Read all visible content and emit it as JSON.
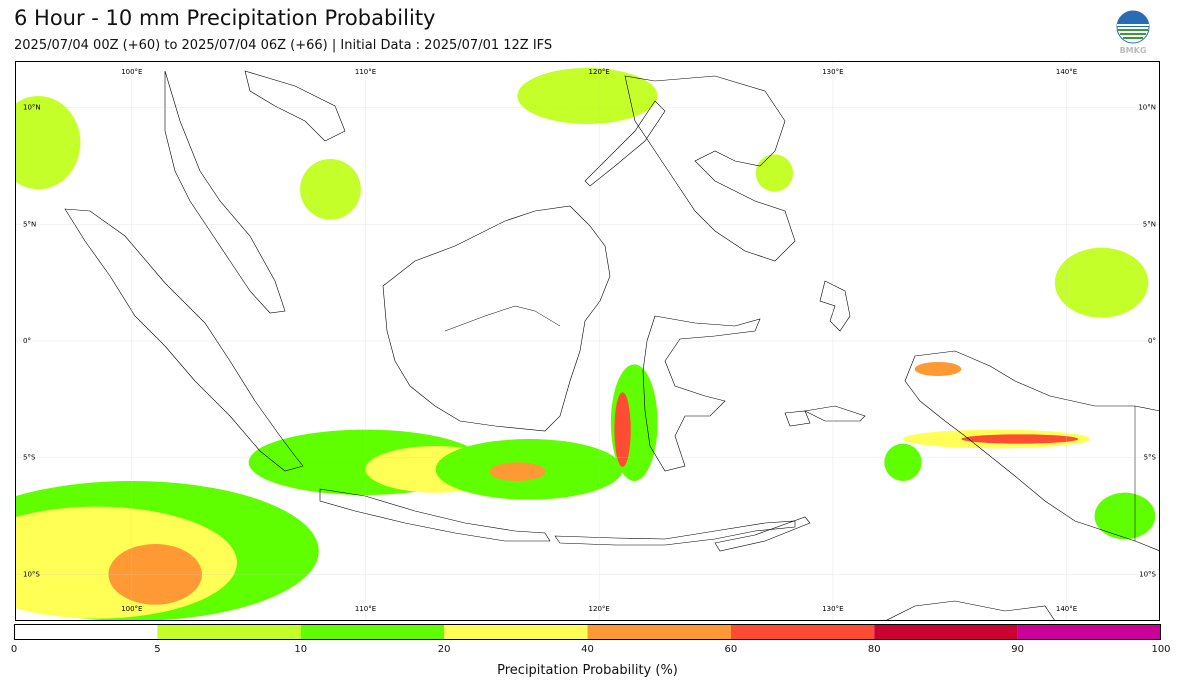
{
  "header": {
    "title": "6 Hour - 10 mm Precipitation Probability",
    "subtitle": "2025/07/04 00Z (+60) to 2025/07/04 06Z (+66) | Initial Data : 2025/07/01 12Z IFS",
    "logo_text": "BMKG"
  },
  "map": {
    "lon_range": [
      95,
      144
    ],
    "lat_range": [
      -12,
      12
    ],
    "lon_labels": [
      "100°E",
      "110°E",
      "120°E",
      "130°E",
      "140°E"
    ],
    "lat_labels": [
      "10°N",
      "5°N",
      "0°",
      "5°S",
      "10°S"
    ],
    "lon_values": [
      100,
      110,
      120,
      130,
      140
    ],
    "lat_values": [
      10,
      5,
      0,
      -5,
      -10
    ],
    "fields": [
      {
        "lon": 100,
        "lat": -9,
        "rx": 8,
        "ry": 3,
        "level": 10
      },
      {
        "lon": 98.5,
        "lat": -9.5,
        "rx": 6,
        "ry": 2.4,
        "level": 20
      },
      {
        "lon": 101,
        "lat": -10,
        "rx": 2,
        "ry": 1.3,
        "level": 40
      },
      {
        "lon": 110,
        "lat": -5.2,
        "rx": 5,
        "ry": 1.4,
        "level": 10
      },
      {
        "lon": 113,
        "lat": -5.5,
        "rx": 3,
        "ry": 1,
        "level": 20
      },
      {
        "lon": 117,
        "lat": -5.5,
        "rx": 4,
        "ry": 1.3,
        "level": 10
      },
      {
        "lon": 116.5,
        "lat": -5.6,
        "rx": 1.2,
        "ry": 0.4,
        "level": 40
      },
      {
        "lon": 121.5,
        "lat": -3.5,
        "rx": 1,
        "ry": 2.5,
        "level": 10
      },
      {
        "lon": 121,
        "lat": -3.8,
        "rx": 0.35,
        "ry": 1.6,
        "level": 60
      },
      {
        "lon": 137,
        "lat": -4.2,
        "rx": 4,
        "ry": 0.4,
        "level": 20
      },
      {
        "lon": 138,
        "lat": -4.2,
        "rx": 2.5,
        "ry": 0.2,
        "level": 60
      },
      {
        "lon": 134.5,
        "lat": -1.2,
        "rx": 1,
        "ry": 0.3,
        "level": 40
      },
      {
        "lon": 119.5,
        "lat": 10.5,
        "rx": 3,
        "ry": 1.2,
        "level": 5
      },
      {
        "lon": 141.5,
        "lat": 2.5,
        "rx": 2,
        "ry": 1.5,
        "level": 5
      },
      {
        "lon": 142.5,
        "lat": -7.5,
        "rx": 1.3,
        "ry": 1,
        "level": 10
      },
      {
        "lon": 96,
        "lat": 8.5,
        "rx": 1.8,
        "ry": 2,
        "level": 5
      },
      {
        "lon": 108.5,
        "lat": 6.5,
        "rx": 1.3,
        "ry": 1.3,
        "level": 5
      },
      {
        "lon": 127.5,
        "lat": 7.2,
        "rx": 0.8,
        "ry": 0.8,
        "level": 5
      },
      {
        "lon": 133,
        "lat": -5.2,
        "rx": 0.8,
        "ry": 0.8,
        "level": 10
      }
    ]
  },
  "colorbar": {
    "ticks": [
      "0",
      "5",
      "10",
      "20",
      "40",
      "60",
      "80",
      "90",
      "100"
    ],
    "colors": [
      "#ffffff",
      "#c5ff2a",
      "#5fff00",
      "#ffff55",
      "#ff9933",
      "#ff4d33",
      "#cc0033",
      "#cc0099"
    ],
    "label": "Precipitation Probability (%)"
  }
}
